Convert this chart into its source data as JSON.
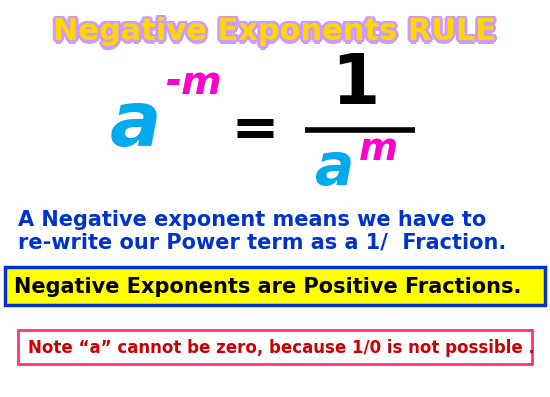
{
  "title": "Negative Exponents RULE",
  "title_color": "#FFD700",
  "title_shadow_color": "#CC99FF",
  "bg_color": "#FFFFFF",
  "cyan_color": "#00AAEE",
  "magenta_color": "#FF00CC",
  "black_color": "#000000",
  "blue_color": "#0033CC",
  "dark_red_color": "#CC0000",
  "desc_line1": "A Negative exponent means we have to",
  "desc_line2": "re-write our Power term as a 1/  Fraction.",
  "yellow_box_text": "Negative Exponents are Positive Fractions.",
  "note_text": "Note “a” cannot be zero, because 1/0 is not possible .",
  "yellow_box_color": "#FFFF00",
  "yellow_border_color": "#0033CC",
  "note_border_color": "#FF3377"
}
